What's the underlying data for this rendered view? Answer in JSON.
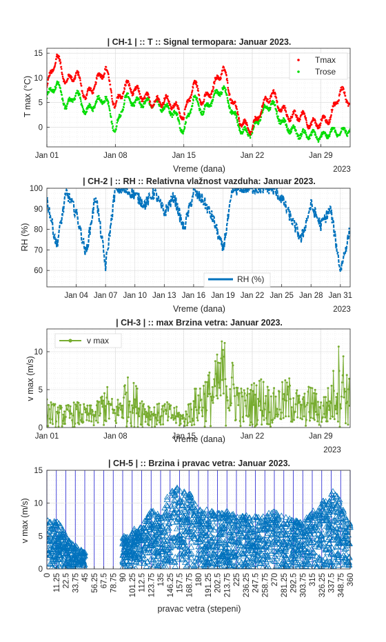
{
  "chart_data": [
    {
      "type": "scatter",
      "title": "| CH-1 | :: T :: Signal termopara: Januar 2023.",
      "xlabel": "Vreme (dana)",
      "ylabel": "T max (°C)",
      "x_secondary_label": "2023",
      "xlim": [
        "2023-01-01",
        "2023-02-01"
      ],
      "ylim": [
        -4,
        16
      ],
      "x_ticks": [
        "Jan 01",
        "Jan 08",
        "Jan 15",
        "Jan 22",
        "Jan 29"
      ],
      "y_ticks": [
        0,
        5,
        10,
        15
      ],
      "grid": true,
      "legend": "top-right",
      "x": [
        "2023-01-01",
        "2023-01-02",
        "2023-01-03",
        "2023-01-04",
        "2023-01-05",
        "2023-01-06",
        "2023-01-07",
        "2023-01-08",
        "2023-01-09",
        "2023-01-10",
        "2023-01-11",
        "2023-01-12",
        "2023-01-13",
        "2023-01-14",
        "2023-01-15",
        "2023-01-16",
        "2023-01-17",
        "2023-01-18",
        "2023-01-19",
        "2023-01-20",
        "2023-01-21",
        "2023-01-22",
        "2023-01-23",
        "2023-01-24",
        "2023-01-25",
        "2023-01-26",
        "2023-01-27",
        "2023-01-28",
        "2023-01-29",
        "2023-01-30",
        "2023-01-31",
        "2023-02-01"
      ],
      "series": [
        {
          "name": "Tmax",
          "color": "#ff0000",
          "values": [
            8,
            14.5,
            9,
            11,
            6,
            9,
            12,
            4,
            8.5,
            7.5,
            6,
            5,
            5.5,
            4.5,
            2,
            9,
            5,
            8,
            12,
            5,
            0.5,
            -0.5,
            4,
            7,
            3.5,
            2,
            2.5,
            0.5,
            1,
            2,
            7.5,
            5
          ]
        },
        {
          "name": "Trose",
          "color": "#00dd00",
          "values": [
            6,
            9,
            4,
            7,
            3,
            5,
            6,
            -1,
            6,
            5,
            5,
            5,
            4,
            3,
            -1,
            6,
            3,
            6,
            8,
            3,
            -1,
            -1,
            3,
            5,
            1,
            -0.5,
            -1.5,
            -1.5,
            -2,
            -1,
            -1,
            -0.5
          ]
        }
      ]
    },
    {
      "type": "line",
      "title": "| CH-2 | :: RH :: Relativna vlažnost vazduha: Januar 2023.",
      "xlabel": "Vreme (dana)",
      "ylabel": "RH (%)",
      "x_secondary_label": "2023",
      "xlim": [
        "2023-01-01",
        "2023-02-01"
      ],
      "ylim": [
        52,
        100
      ],
      "x_ticks": [
        "Jan 04",
        "Jan 07",
        "Jan 10",
        "Jan 13",
        "Jan 16",
        "Jan 19",
        "Jan 22",
        "Jan 25",
        "Jan 28",
        "Jan 31"
      ],
      "y_ticks": [
        60,
        70,
        80,
        90,
        100
      ],
      "grid": true,
      "legend": "bottom-center",
      "x": [
        "2023-01-01",
        "2023-01-02",
        "2023-01-03",
        "2023-01-04",
        "2023-01-05",
        "2023-01-06",
        "2023-01-07",
        "2023-01-08",
        "2023-01-09",
        "2023-01-10",
        "2023-01-11",
        "2023-01-12",
        "2023-01-13",
        "2023-01-14",
        "2023-01-15",
        "2023-01-16",
        "2023-01-17",
        "2023-01-18",
        "2023-01-19",
        "2023-01-20",
        "2023-01-21",
        "2023-01-22",
        "2023-01-23",
        "2023-01-24",
        "2023-01-25",
        "2023-01-26",
        "2023-01-27",
        "2023-01-28",
        "2023-01-29",
        "2023-01-30",
        "2023-01-31",
        "2023-02-01"
      ],
      "series": [
        {
          "name": "RH (%)",
          "color": "#0072bd",
          "values": [
            95,
            72,
            98,
            88,
            68,
            97,
            62,
            100,
            99,
            97,
            92,
            98,
            88,
            96,
            80,
            98,
            94,
            85,
            70,
            99,
            100,
            100,
            100,
            100,
            95,
            85,
            75,
            92,
            82,
            90,
            60,
            80
          ]
        }
      ]
    },
    {
      "type": "line",
      "title": "| CH-3 | :: max Brzina vetra: Januar 2023.",
      "xlabel": "Vreme (dana)",
      "ylabel": "v max (m/s)",
      "x_secondary_label": "2023",
      "xlim": [
        "2023-01-01",
        "2023-02-01"
      ],
      "ylim": [
        0,
        13
      ],
      "x_ticks": [
        "Jan 01",
        "Jan 08",
        "Jan 15",
        "Jan 22",
        "Jan 29"
      ],
      "y_ticks": [
        0,
        5,
        10
      ],
      "grid": true,
      "legend": "top-left",
      "x": [
        "2023-01-01",
        "2023-01-02",
        "2023-01-03",
        "2023-01-04",
        "2023-01-05",
        "2023-01-06",
        "2023-01-07",
        "2023-01-08",
        "2023-01-09",
        "2023-01-10",
        "2023-01-11",
        "2023-01-12",
        "2023-01-13",
        "2023-01-14",
        "2023-01-15",
        "2023-01-16",
        "2023-01-17",
        "2023-01-18",
        "2023-01-19",
        "2023-01-20",
        "2023-01-21",
        "2023-01-22",
        "2023-01-23",
        "2023-01-24",
        "2023-01-25",
        "2023-01-26",
        "2023-01-27",
        "2023-01-28",
        "2023-01-29",
        "2023-01-30",
        "2023-01-31",
        "2023-02-01"
      ],
      "series": [
        {
          "name": "v max",
          "color": "#77ac30",
          "values": [
            4,
            3,
            3,
            3.5,
            3,
            3,
            6,
            3,
            7,
            6,
            4,
            3,
            3.5,
            3,
            2,
            5,
            7,
            8,
            12.5,
            9,
            5,
            6,
            7,
            5,
            6,
            7,
            4,
            6,
            4,
            6,
            12.5,
            6
          ]
        }
      ]
    },
    {
      "type": "scatter",
      "title": "| CH-5 | :: Brzina i pravac vetra: Januar 2023.",
      "xlabel": "pravac vetra (stepeni)",
      "ylabel": "v max (m/s)",
      "xlim": [
        0,
        360
      ],
      "ylim": [
        0,
        15
      ],
      "x_ticks": [
        "0",
        "11.25",
        "22.5",
        "33.75",
        "45",
        "56.25",
        "67.5",
        "78.75",
        "90",
        "101.25",
        "112.5",
        "123.75",
        "135",
        "146.25",
        "157.5",
        "168.75",
        "180",
        "191.25",
        "202.5",
        "213.75",
        "225",
        "236.25",
        "247.5",
        "258.75",
        "270",
        "281.25",
        "292.5",
        "303.75",
        "315",
        "326.25",
        "337.5",
        "348.75",
        "360"
      ],
      "y_ticks": [
        0,
        5,
        10,
        15
      ],
      "grid": true,
      "x": [
        5,
        15,
        25,
        45,
        90,
        100,
        110,
        125,
        135,
        146,
        158,
        168,
        180,
        191,
        202,
        214,
        225,
        236,
        248,
        258,
        270,
        281,
        292,
        304,
        315,
        326,
        338,
        349,
        358
      ],
      "series": [
        {
          "name": "v max",
          "color": "#0072bd",
          "values": [
            7.5,
            7,
            4.5,
            2.5,
            5,
            6,
            6.5,
            9,
            8,
            12,
            12.5,
            12,
            9,
            9,
            8.5,
            9,
            8,
            8.5,
            8,
            8,
            9,
            8,
            7.5,
            7,
            9,
            10,
            12.5,
            10.5,
            7
          ]
        }
      ]
    }
  ]
}
